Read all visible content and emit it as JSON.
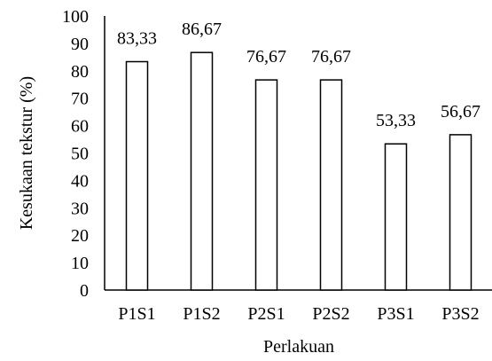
{
  "chart_data": {
    "type": "bar",
    "categories": [
      "P1S1",
      "P1S2",
      "P2S1",
      "P2S2",
      "P3S1",
      "P3S2"
    ],
    "values": [
      83.33,
      86.67,
      76.67,
      76.67,
      53.33,
      56.67
    ],
    "value_labels": [
      "83,33",
      "86,67",
      "76,67",
      "76,67",
      "53,33",
      "56,67"
    ],
    "xlabel": "Perlakuan",
    "ylabel": "Kesukaan tekstur (%)",
    "ylim": [
      0,
      100
    ],
    "yticks": [
      0,
      10,
      20,
      30,
      40,
      50,
      60,
      70,
      80,
      90,
      100
    ],
    "grid": false,
    "legend": "none",
    "bar_fill": "#ffffff",
    "bar_stroke": "#000000"
  }
}
